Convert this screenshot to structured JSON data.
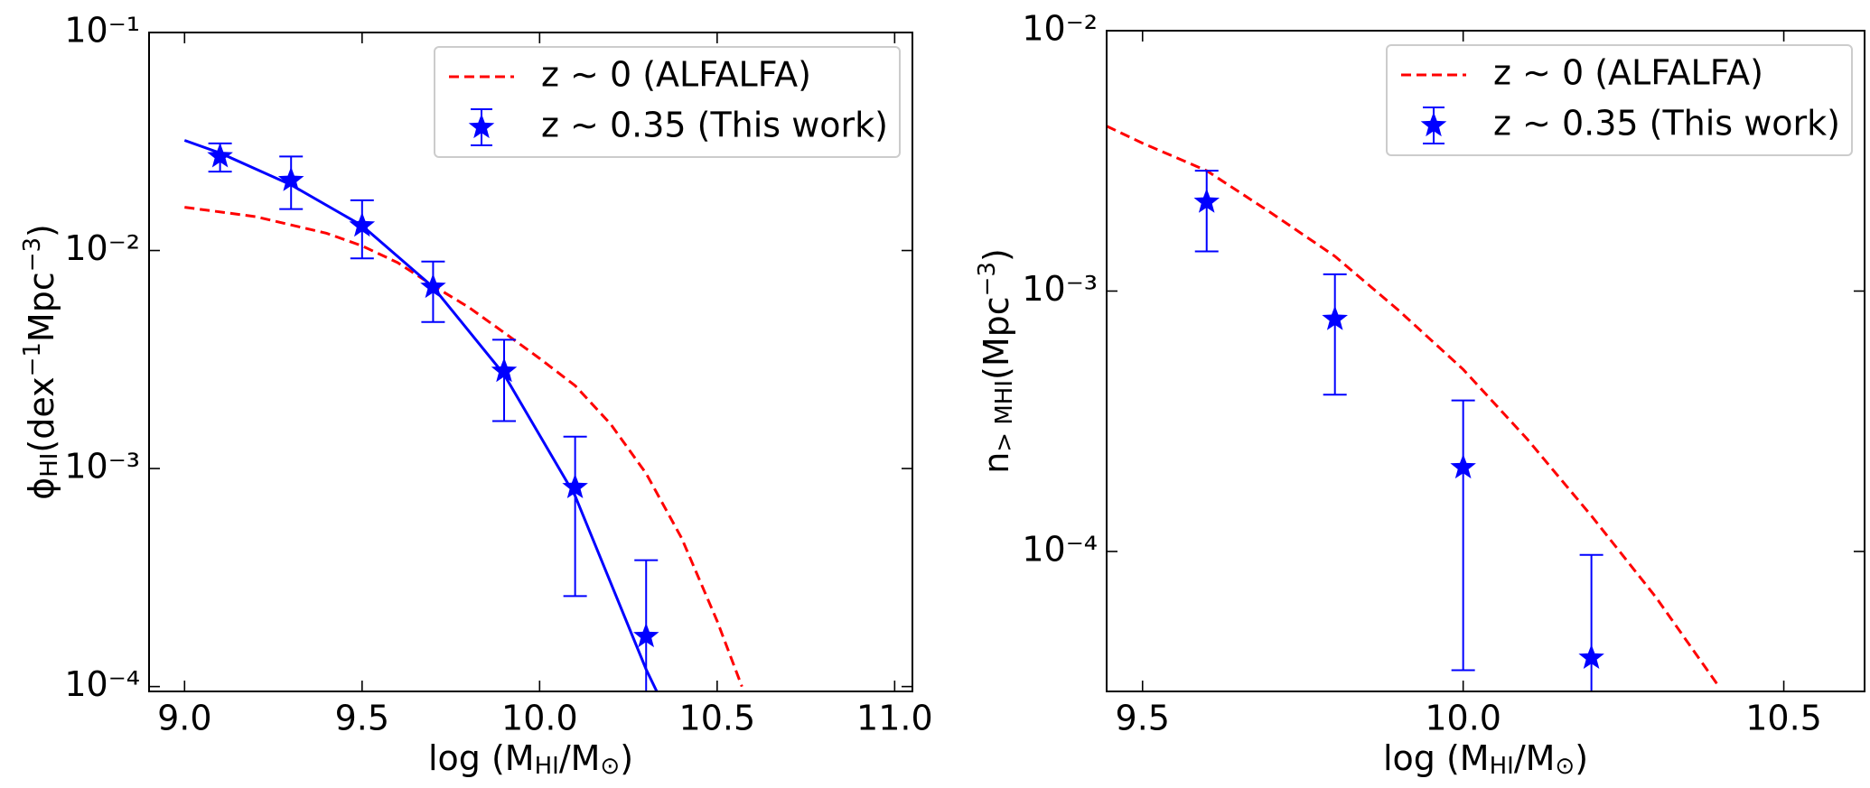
{
  "chart_data": [
    {
      "type": "line",
      "ylog": true,
      "xlabel": [
        {
          "text": "log (M"
        },
        {
          "text": "HI",
          "style": "sub"
        },
        {
          "text": "/M"
        },
        {
          "text": "⊙",
          "style": "sub"
        },
        {
          "text": ")"
        }
      ],
      "ylabel": [
        {
          "text": "ϕ"
        },
        {
          "text": "HI",
          "style": "sub"
        },
        {
          "text": "(dex"
        },
        {
          "text": "−1",
          "style": "sup"
        },
        {
          "text": "Mpc"
        },
        {
          "text": "−3",
          "style": "sup"
        },
        {
          "text": ")"
        }
      ],
      "xlim": [
        8.9,
        11.05
      ],
      "ylim": [
        9.5e-05,
        0.1
      ],
      "xticks": [
        {
          "value": 9.0,
          "label": "9.0"
        },
        {
          "value": 9.5,
          "label": "9.5"
        },
        {
          "value": 10.0,
          "label": "10.0"
        },
        {
          "value": 10.5,
          "label": "10.5"
        },
        {
          "value": 11.0,
          "label": "11.0"
        }
      ],
      "yticks": [
        {
          "value": 0.0001,
          "label": "10⁻⁴"
        },
        {
          "value": 0.001,
          "label": "10⁻³"
        },
        {
          "value": 0.01,
          "label": "10⁻²"
        },
        {
          "value": 0.1,
          "label": "10⁻¹"
        }
      ],
      "legend": "upper right",
      "series": [
        {
          "name": "z ∼ 0 (ALFALFA)",
          "type": "line",
          "style": "dashed",
          "color": "#ff0000",
          "x": [
            9.0,
            9.2,
            9.4,
            9.5,
            9.6,
            9.7,
            9.8,
            9.9,
            10.0,
            10.1,
            10.2,
            10.3,
            10.4,
            10.5,
            10.57
          ],
          "values": [
            0.0158,
            0.0143,
            0.012,
            0.0105,
            0.0088,
            0.0069,
            0.0055,
            0.0042,
            0.0032,
            0.0024,
            0.0016,
            0.00095,
            0.00048,
            0.0002,
            0.0001
          ]
        },
        {
          "name": "z ∼ 0.35 (This work)",
          "type": "errorbar",
          "color": "#0000ff",
          "x": [
            9.1,
            9.3,
            9.5,
            9.7,
            9.9,
            10.1,
            10.3
          ],
          "values": [
            0.027,
            0.021,
            0.013,
            0.0068,
            0.0028,
            0.00082,
            0.00017
          ],
          "lower": [
            0.023,
            0.0155,
            0.0092,
            0.0047,
            0.00165,
            0.00026,
            null
          ],
          "upper": [
            0.031,
            0.027,
            0.017,
            0.0089,
            0.0039,
            0.0014,
            0.00038
          ]
        },
        {
          "type": "line",
          "style": "solid",
          "color": "#0000ff",
          "x": [
            9.0,
            9.1,
            9.3,
            9.5,
            9.7,
            9.9,
            10.1,
            10.3,
            10.33
          ],
          "values": [
            0.032,
            0.028,
            0.02,
            0.013,
            0.0068,
            0.0027,
            0.00075,
            0.00012,
            9.5e-05
          ]
        }
      ]
    },
    {
      "type": "line",
      "ylog": true,
      "xlabel": [
        {
          "text": "log (M"
        },
        {
          "text": "HI",
          "style": "sub"
        },
        {
          "text": "/M"
        },
        {
          "text": "⊙",
          "style": "sub"
        },
        {
          "text": ")"
        }
      ],
      "ylabel": [
        {
          "text": "n"
        },
        {
          "text": "> MHI",
          "style": "sub"
        },
        {
          "text": "(Mpc"
        },
        {
          "text": "−3",
          "style": "sup"
        },
        {
          "text": ")"
        }
      ],
      "xlim": [
        9.444,
        10.626
      ],
      "ylim": [
        2.9e-05,
        0.01
      ],
      "xticks": [
        {
          "value": 9.5,
          "label": "9.5"
        },
        {
          "value": 10.0,
          "label": "10.0"
        },
        {
          "value": 10.5,
          "label": "10.5"
        }
      ],
      "yticks": [
        {
          "value": 0.0001,
          "label": "10⁻⁴"
        },
        {
          "value": 0.001,
          "label": "10⁻³"
        },
        {
          "value": 0.01,
          "label": "10⁻²"
        }
      ],
      "legend": "upper right",
      "series": [
        {
          "name": "z ∼ 0 (ALFALFA)",
          "type": "line",
          "style": "dashed",
          "color": "#ff0000",
          "x": [
            9.444,
            9.5,
            9.6,
            9.7,
            9.8,
            9.9,
            10.0,
            10.1,
            10.2,
            10.3,
            10.4
          ],
          "values": [
            0.0043,
            0.0037,
            0.0029,
            0.002,
            0.00136,
            0.00084,
            0.0005,
            0.00027,
            0.000137,
            6.7e-05,
            3e-05
          ]
        },
        {
          "name": "z ∼ 0.35 (This work)",
          "type": "errorbar",
          "color": "#0000ff",
          "x": [
            9.6,
            9.8,
            10.0,
            10.2
          ],
          "values": [
            0.0022,
            0.00078,
            0.00021,
            3.9e-05
          ],
          "lower": [
            0.00142,
            0.0004,
            3.5e-05,
            null
          ],
          "upper": [
            0.0029,
            0.00116,
            0.00038,
            9.7e-05
          ]
        }
      ]
    }
  ]
}
